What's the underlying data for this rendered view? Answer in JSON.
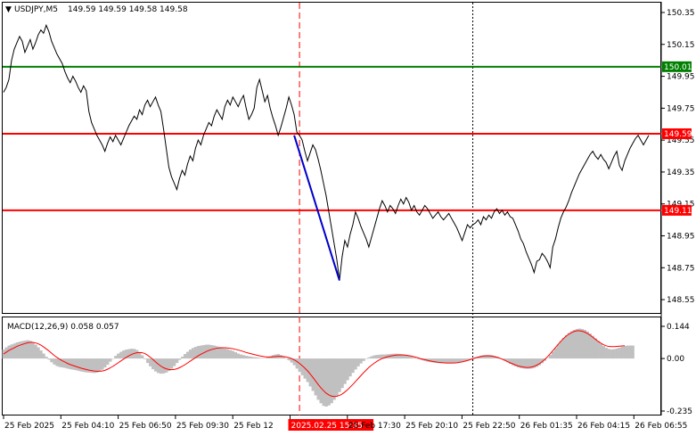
{
  "window": {
    "symbol_header": "USDJPY,M5",
    "ohlc": "149.59 149.59 149.58 149.58"
  },
  "colors": {
    "price_line": "#000000",
    "level_red": "#ff0000",
    "level_green": "#008000",
    "trend": "#0000cc",
    "macd_hist": "#c0c0c0",
    "macd_signal": "#ff0000",
    "grid": "#c8c8c8"
  },
  "chart_data": [
    {
      "type": "line",
      "title": "USDJPY,M5",
      "ylim": [
        148.5,
        150.35
      ],
      "y_ticks": [
        "150.35",
        "150.15",
        "149.95",
        "149.75",
        "149.55",
        "149.35",
        "149.15",
        "148.95",
        "148.75",
        "148.55"
      ],
      "x_ticks": [
        "25 Feb 2025",
        "25 Feb 04:10",
        "25 Feb 06:50",
        "25 Feb 09:30",
        "25 Feb 12",
        "2025.02.25 15:35",
        "25 Feb 17:30",
        "25 Feb 20:10",
        "25 Feb 22:50",
        "26 Feb 01:35",
        "26 Feb 04:15",
        "26 Feb 06:55"
      ],
      "highlighted_x_tick": "2025.02.25 15:35",
      "horizontal_levels": [
        {
          "value": 150.01,
          "label": "150.01",
          "color": "#008000"
        },
        {
          "value": 149.59,
          "label": "149.59",
          "color": "#ff0000"
        },
        {
          "value": 149.11,
          "label": "149.11",
          "color": "#ff0000"
        }
      ],
      "vertical_markers": [
        {
          "index": 111,
          "style": "dashed",
          "color": "#ff0000"
        },
        {
          "index": 176,
          "style": "dotted",
          "color": "#000000"
        }
      ],
      "trendline": {
        "from": {
          "index": 109,
          "y": 149.58
        },
        "to": {
          "index": 126,
          "y": 148.67
        }
      },
      "series": [
        {
          "values": [
            149.85,
            149.88,
            149.93,
            150.05,
            150.12,
            150.16,
            150.2,
            150.17,
            150.1,
            150.14,
            150.18,
            150.12,
            150.16,
            150.21,
            150.24,
            150.22,
            150.27,
            150.23,
            150.17,
            150.13,
            150.09,
            150.06,
            150.03,
            149.98,
            149.94,
            149.91,
            149.95,
            149.92,
            149.88,
            149.85,
            149.89,
            149.86,
            149.73,
            149.66,
            149.62,
            149.58,
            149.55,
            149.52,
            149.48,
            149.53,
            149.57,
            149.54,
            149.58,
            149.55,
            149.52,
            149.56,
            149.6,
            149.64,
            149.67,
            149.7,
            149.68,
            149.74,
            149.71,
            149.77,
            149.8,
            149.76,
            149.79,
            149.82,
            149.77,
            149.73,
            149.62,
            149.5,
            149.38,
            149.32,
            149.28,
            149.24,
            149.31,
            149.36,
            149.33,
            149.4,
            149.45,
            149.42,
            149.5,
            149.55,
            149.52,
            149.58,
            149.62,
            149.66,
            149.64,
            149.7,
            149.74,
            149.71,
            149.68,
            149.76,
            149.8,
            149.77,
            149.82,
            149.79,
            149.76,
            149.8,
            149.83,
            149.75,
            149.68,
            149.71,
            149.75,
            149.88,
            149.93,
            149.86,
            149.79,
            149.83,
            149.75,
            149.69,
            149.64,
            149.58,
            149.63,
            149.69,
            149.75,
            149.82,
            149.77,
            149.71,
            149.6,
            149.58,
            149.55,
            149.48,
            149.42,
            149.47,
            149.52,
            149.49,
            149.43,
            149.36,
            149.28,
            149.2,
            149.1,
            149.0,
            148.9,
            148.8,
            148.67,
            148.82,
            148.92,
            148.88,
            148.96,
            149.02,
            149.1,
            149.06,
            149.01,
            148.97,
            148.93,
            148.88,
            148.94,
            149.0,
            149.06,
            149.12,
            149.17,
            149.14,
            149.1,
            149.14,
            149.12,
            149.09,
            149.14,
            149.18,
            149.15,
            149.19,
            149.16,
            149.11,
            149.14,
            149.1,
            149.08,
            149.11,
            149.14,
            149.12,
            149.09,
            149.06,
            149.08,
            149.1,
            149.07,
            149.05,
            149.07,
            149.09,
            149.06,
            149.03,
            149.0,
            148.96,
            148.92,
            148.97,
            149.02,
            149.0,
            149.02,
            149.03,
            149.05,
            149.02,
            149.07,
            149.05,
            149.08,
            149.06,
            149.1,
            149.12,
            149.09,
            149.11,
            149.08,
            149.1,
            149.07,
            149.06,
            149.02,
            148.98,
            148.93,
            148.9,
            148.85,
            148.81,
            148.77,
            148.72,
            148.79,
            148.8,
            148.84,
            148.82,
            148.79,
            148.75,
            148.88,
            148.93,
            149.0,
            149.06,
            149.1,
            149.13,
            149.17,
            149.22,
            149.26,
            149.3,
            149.34,
            149.37,
            149.4,
            149.43,
            149.46,
            149.48,
            149.45,
            149.43,
            149.46,
            149.43,
            149.41,
            149.37,
            149.41,
            149.45,
            149.48,
            149.39,
            149.36,
            149.42,
            149.46,
            149.5,
            149.53,
            149.56,
            149.58,
            149.55,
            149.52,
            149.55,
            149.58
          ]
        }
      ]
    },
    {
      "type": "bar",
      "title": "MACD(12,26,9) 0.058 0.057",
      "ylim": [
        -0.235,
        0.144
      ],
      "y_ticks": [
        "0.144",
        "0.00",
        "-0.235"
      ],
      "series": [
        {
          "name": "MACD(12,26,9)",
          "values": [
            0.04,
            0.05,
            0.058,
            0.063,
            0.067,
            0.072,
            0.075,
            0.078,
            0.08,
            0.082,
            0.079,
            0.072,
            0.062,
            0.05,
            0.036,
            0.022,
            0.008,
            -0.005,
            -0.017,
            -0.027,
            -0.034,
            -0.038,
            -0.04,
            -0.042,
            -0.045,
            -0.048,
            -0.05,
            -0.052,
            -0.055,
            -0.058,
            -0.06,
            -0.062,
            -0.063,
            -0.064,
            -0.065,
            -0.063,
            -0.058,
            -0.05,
            -0.04,
            -0.028,
            -0.014,
            0.0,
            0.012,
            0.022,
            0.03,
            0.036,
            0.04,
            0.042,
            0.044,
            0.043,
            0.038,
            0.028,
            0.014,
            -0.003,
            -0.02,
            -0.035,
            -0.048,
            -0.058,
            -0.065,
            -0.068,
            -0.067,
            -0.063,
            -0.056,
            -0.046,
            -0.034,
            -0.02,
            -0.006,
            0.008,
            0.02,
            0.03,
            0.04,
            0.047,
            0.052,
            0.056,
            0.058,
            0.06,
            0.062,
            0.062,
            0.06,
            0.058,
            0.055,
            0.052,
            0.048,
            0.045,
            0.042,
            0.038,
            0.034,
            0.028,
            0.022,
            0.018,
            0.015,
            0.012,
            0.01,
            0.008,
            0.006,
            0.005,
            0.003,
            0.002,
            0.002,
            0.005,
            0.01,
            0.015,
            0.018,
            0.02,
            0.015,
            0.008,
            0.0,
            -0.008,
            -0.018,
            -0.03,
            -0.045,
            -0.06,
            -0.075,
            -0.09,
            -0.105,
            -0.125,
            -0.145,
            -0.165,
            -0.185,
            -0.2,
            -0.212,
            -0.215,
            -0.21,
            -0.2,
            -0.185,
            -0.168,
            -0.15,
            -0.132,
            -0.114,
            -0.097,
            -0.08,
            -0.064,
            -0.049,
            -0.035,
            -0.022,
            -0.011,
            -0.002,
            0.005,
            0.01,
            0.014,
            0.016,
            0.017,
            0.018,
            0.018,
            0.019,
            0.02,
            0.021,
            0.022,
            0.021,
            0.02,
            0.018,
            0.015,
            0.012,
            0.008,
            0.004,
            0.0,
            -0.004,
            -0.008,
            -0.011,
            -0.014,
            -0.016,
            -0.018,
            -0.019,
            -0.02,
            -0.021,
            -0.021,
            -0.022,
            -0.022,
            -0.022,
            -0.021,
            -0.02,
            -0.018,
            -0.016,
            -0.013,
            -0.009,
            -0.005,
            0.0,
            0.005,
            0.009,
            0.013,
            0.015,
            0.016,
            0.016,
            0.015,
            0.012,
            0.008,
            0.003,
            -0.003,
            -0.01,
            -0.017,
            -0.024,
            -0.03,
            -0.035,
            -0.04,
            -0.043,
            -0.045,
            -0.046,
            -0.046,
            -0.045,
            -0.042,
            -0.037,
            -0.03,
            -0.021,
            -0.01,
            0.002,
            0.016,
            0.031,
            0.047,
            0.063,
            0.078,
            0.092,
            0.104,
            0.114,
            0.122,
            0.128,
            0.132,
            0.134,
            0.132,
            0.128,
            0.121,
            0.112,
            0.102,
            0.09,
            0.078,
            0.066,
            0.056,
            0.048,
            0.043,
            0.041,
            0.042,
            0.045,
            0.049,
            0.053,
            0.056,
            0.058,
            0.058,
            0.058
          ]
        },
        {
          "name": "signal",
          "values": [
            0.02,
            0.028,
            0.036,
            0.042,
            0.048,
            0.054,
            0.059,
            0.063,
            0.067,
            0.07,
            0.072,
            0.072,
            0.07,
            0.066,
            0.06,
            0.052,
            0.043,
            0.034,
            0.024,
            0.014,
            0.005,
            -0.003,
            -0.01,
            -0.016,
            -0.022,
            -0.027,
            -0.031,
            -0.035,
            -0.039,
            -0.043,
            -0.046,
            -0.049,
            -0.052,
            -0.054,
            -0.056,
            -0.057,
            -0.057,
            -0.056,
            -0.053,
            -0.048,
            -0.042,
            -0.035,
            -0.027,
            -0.019,
            -0.011,
            -0.003,
            0.005,
            0.012,
            0.018,
            0.023,
            0.026,
            0.027,
            0.026,
            0.022,
            0.015,
            0.006,
            -0.004,
            -0.015,
            -0.025,
            -0.034,
            -0.041,
            -0.046,
            -0.049,
            -0.05,
            -0.049,
            -0.046,
            -0.041,
            -0.035,
            -0.028,
            -0.02,
            -0.012,
            -0.004,
            0.004,
            0.012,
            0.019,
            0.025,
            0.031,
            0.036,
            0.04,
            0.043,
            0.046,
            0.047,
            0.048,
            0.048,
            0.047,
            0.046,
            0.044,
            0.041,
            0.038,
            0.035,
            0.031,
            0.027,
            0.024,
            0.021,
            0.018,
            0.015,
            0.012,
            0.01,
            0.008,
            0.007,
            0.007,
            0.008,
            0.009,
            0.01,
            0.01,
            0.009,
            0.007,
            0.004,
            0.0,
            -0.006,
            -0.013,
            -0.022,
            -0.032,
            -0.043,
            -0.055,
            -0.069,
            -0.084,
            -0.1,
            -0.116,
            -0.131,
            -0.144,
            -0.155,
            -0.163,
            -0.168,
            -0.17,
            -0.169,
            -0.165,
            -0.159,
            -0.15,
            -0.14,
            -0.128,
            -0.116,
            -0.103,
            -0.09,
            -0.077,
            -0.064,
            -0.052,
            -0.04,
            -0.03,
            -0.021,
            -0.013,
            -0.006,
            0.0,
            0.004,
            0.008,
            0.011,
            0.013,
            0.015,
            0.016,
            0.016,
            0.016,
            0.015,
            0.013,
            0.011,
            0.008,
            0.005,
            0.001,
            -0.002,
            -0.005,
            -0.008,
            -0.011,
            -0.013,
            -0.015,
            -0.017,
            -0.018,
            -0.019,
            -0.02,
            -0.02,
            -0.02,
            -0.02,
            -0.019,
            -0.017,
            -0.015,
            -0.012,
            -0.009,
            -0.005,
            -0.001,
            0.003,
            0.006,
            0.009,
            0.011,
            0.012,
            0.012,
            0.011,
            0.009,
            0.006,
            0.002,
            -0.003,
            -0.008,
            -0.014,
            -0.019,
            -0.024,
            -0.029,
            -0.033,
            -0.036,
            -0.038,
            -0.04,
            -0.04,
            -0.038,
            -0.035,
            -0.03,
            -0.023,
            -0.014,
            -0.004,
            0.008,
            0.021,
            0.035,
            0.049,
            0.063,
            0.077,
            0.089,
            0.1,
            0.109,
            0.116,
            0.121,
            0.124,
            0.124,
            0.122,
            0.118,
            0.112,
            0.104,
            0.095,
            0.086,
            0.077,
            0.069,
            0.062,
            0.057,
            0.054,
            0.053,
            0.053,
            0.054,
            0.055,
            0.056,
            0.057
          ]
        }
      ]
    }
  ]
}
